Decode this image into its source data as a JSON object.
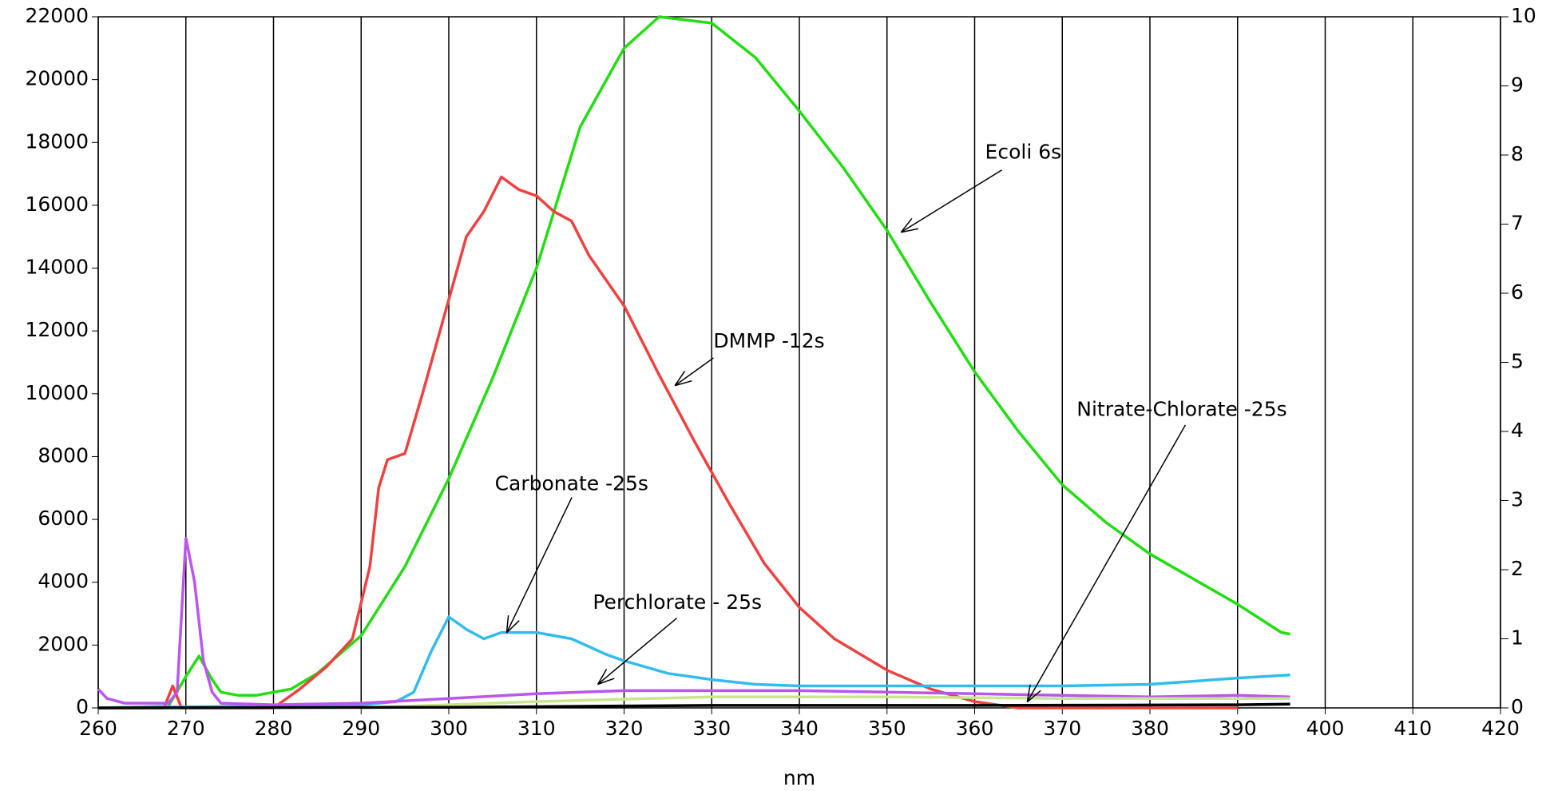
{
  "chart_data": {
    "type": "line",
    "x_label": "nm",
    "xlim": [
      260,
      420
    ],
    "xticks": [
      260,
      270,
      280,
      290,
      300,
      310,
      320,
      330,
      340,
      350,
      360,
      370,
      380,
      390,
      400,
      410,
      420
    ],
    "ylim": [
      0,
      22000
    ],
    "yticks": [
      0,
      2000,
      4000,
      6000,
      8000,
      10000,
      12000,
      14000,
      16000,
      18000,
      20000,
      22000
    ],
    "y2lim": [
      0,
      10
    ],
    "y2ticks": [
      0,
      1,
      2,
      3,
      4,
      5,
      6,
      7,
      8,
      9,
      10
    ],
    "grid": "x",
    "series": [
      {
        "color": "#22dd11",
        "x": [
          260,
          268,
          270,
          271.5,
          273,
          274,
          276,
          278,
          280,
          282,
          285,
          290,
          295,
          300,
          305,
          310,
          315,
          320,
          324,
          330,
          335,
          340,
          345,
          350,
          355,
          360,
          365,
          370,
          375,
          380,
          385,
          390,
          395,
          396
        ],
        "values": [
          0,
          50,
          1000,
          1650,
          900,
          500,
          400,
          400,
          500,
          600,
          1100,
          2300,
          4500,
          7300,
          10500,
          14000,
          18500,
          21000,
          22000,
          21800,
          20700,
          19000,
          17200,
          15200,
          12900,
          10700,
          8800,
          7100,
          5900,
          4900,
          4100,
          3300,
          2400,
          2350
        ]
      },
      {
        "color": "#f04040",
        "x": [
          260,
          267.5,
          268.5,
          269.5,
          280,
          283,
          286,
          289,
          291,
          292,
          293,
          295,
          297,
          300,
          302,
          304,
          306,
          308,
          310,
          312,
          314,
          316,
          320,
          324,
          328,
          332,
          336,
          340,
          344,
          350,
          355,
          360,
          365,
          370,
          390
        ],
        "values": [
          0,
          0,
          700,
          0,
          0,
          600,
          1300,
          2200,
          4500,
          7000,
          7900,
          8100,
          10000,
          13000,
          15000,
          15800,
          16900,
          16500,
          16300,
          15800,
          15500,
          14400,
          12800,
          10600,
          8500,
          6500,
          4600,
          3200,
          2200,
          1200,
          600,
          200,
          0,
          0,
          0
        ]
      },
      {
        "color": "#33bbee",
        "x": [
          260,
          290,
          294,
          296,
          298,
          300,
          302,
          304,
          306,
          310,
          314,
          318,
          320,
          325,
          330,
          335,
          340,
          350,
          360,
          370,
          380,
          385,
          390,
          396
        ],
        "values": [
          0,
          100,
          200,
          500,
          1800,
          2900,
          2500,
          2200,
          2400,
          2400,
          2200,
          1700,
          1500,
          1100,
          900,
          750,
          700,
          700,
          700,
          700,
          750,
          850,
          950,
          1050
        ]
      },
      {
        "color": "#bb55ee",
        "x": [
          260,
          261,
          263,
          268,
          269,
          270,
          271,
          272,
          273,
          274,
          280,
          290,
          300,
          310,
          320,
          330,
          340,
          350,
          360,
          370,
          380,
          390,
          396
        ],
        "values": [
          600,
          300,
          150,
          150,
          500,
          5400,
          4000,
          1500,
          500,
          150,
          100,
          150,
          300,
          450,
          550,
          550,
          550,
          500,
          450,
          400,
          350,
          400,
          350
        ]
      },
      {
        "color": "#c8e68c",
        "x": [
          290,
          310,
          330,
          350,
          370,
          390,
          396
        ],
        "values": [
          0,
          200,
          350,
          350,
          300,
          300,
          300
        ]
      },
      {
        "color": "#000000",
        "x": [
          260,
          300,
          330,
          360,
          390,
          396
        ],
        "values": [
          0,
          20,
          80,
          80,
          100,
          120
        ]
      }
    ],
    "annotations": [
      {
        "text": "Ecoli 6s",
        "x": 351.6,
        "y": 15140
      },
      {
        "text": "DMMP -12s",
        "x": 325.8,
        "y": 10260
      },
      {
        "text": "Carbonate -25s",
        "x": 306.6,
        "y": 2390
      },
      {
        "text": "Perchlorate - 25s",
        "x": 317,
        "y": 750
      },
      {
        "text": "Nitrate-Chlorate -25s",
        "x": 366,
        "y": 190
      }
    ]
  }
}
